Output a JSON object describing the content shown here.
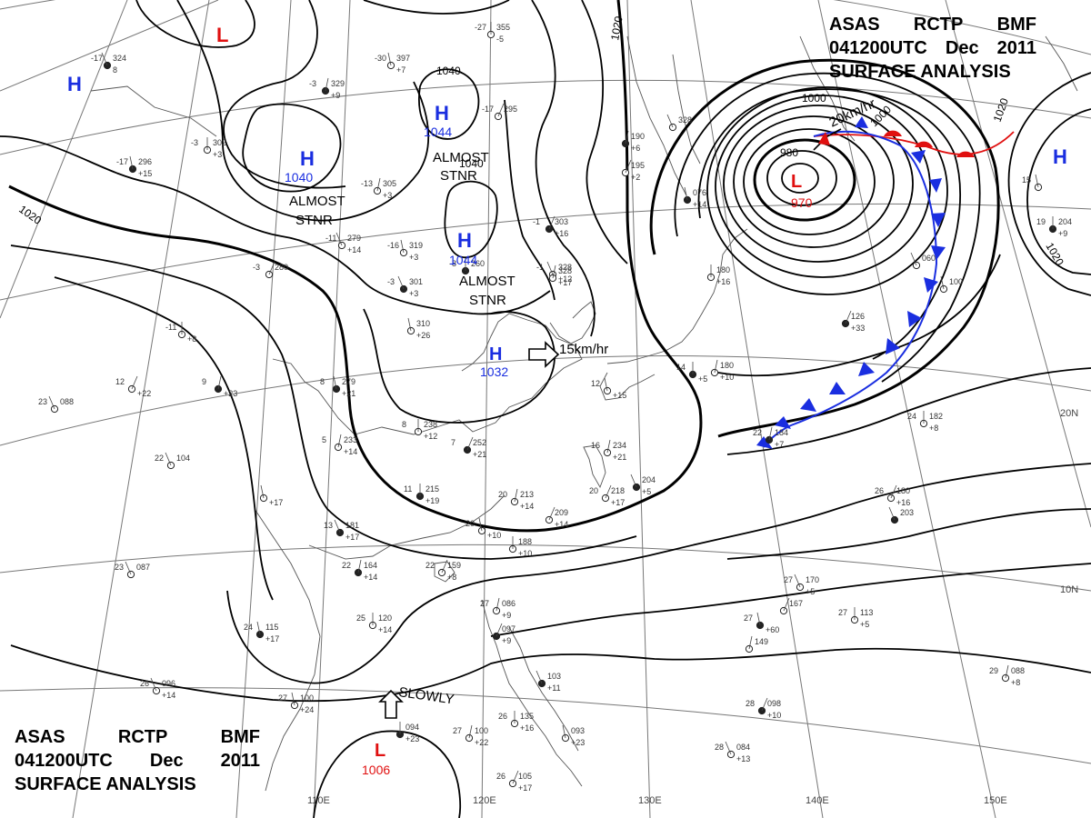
{
  "header": {
    "line1": [
      "ASAS",
      "RCTP",
      "BMF"
    ],
    "line2": [
      "041200UTC",
      "Dec",
      "2011"
    ],
    "line3": "SURFACE  ANALYSIS"
  },
  "grid_labels": {
    "lat_20": "20N",
    "lat_10": "10N",
    "lon_110": "110E",
    "lon_120": "120E",
    "lon_130": "130E",
    "lon_140": "140E",
    "lon_150": "150E"
  },
  "isobar_labels": {
    "i1020_w": "1020",
    "i1020_n": "1020",
    "i1020_e1": "1020",
    "i1020_e2": "1020",
    "i1040_top": "1040",
    "i1040_mid": "1040",
    "i1000": "1000",
    "i980": "980",
    "i1000_b": "1000"
  },
  "pressure_centers": [
    {
      "type": "L",
      "value": ""
    },
    {
      "type": "H",
      "value": ""
    },
    {
      "type": "H",
      "value": "1040"
    },
    {
      "type": "H",
      "value": "1044"
    },
    {
      "type": "H",
      "value": "1044"
    },
    {
      "type": "H",
      "value": "1032"
    },
    {
      "type": "L",
      "value": "970"
    },
    {
      "type": "H",
      "value": ""
    },
    {
      "type": "L",
      "value": "1006"
    }
  ],
  "annotations": {
    "stnr1_a": "ALMOST",
    "stnr1_b": "STNR",
    "stnr2_a": "ALMOST",
    "stnr2_b": "STNR",
    "stnr3_a": "ALMOST",
    "stnr3_b": "STNR",
    "move_h": "15km/hr",
    "move_l": "20km/hr",
    "move_slow": "SLOWLY"
  },
  "colors": {
    "isobar": "#000000",
    "high": "#1a2ee0",
    "low": "#e01010",
    "cold_front": "#1a2ee0",
    "warm_front": "#e01010",
    "grid": "#777777",
    "coast": "#555555"
  },
  "stations": [
    {
      "t": "-17",
      "p": "324",
      "d": "8"
    },
    {
      "t": "-30",
      "p": "397",
      "d": "+7"
    },
    {
      "t": "-27",
      "p": "355",
      "d": "-5"
    },
    {
      "t": "-3",
      "p": "329",
      "d": "+9"
    },
    {
      "t": "-17",
      "p": "295",
      "d": ""
    },
    {
      "t": "-1",
      "p": "328",
      "d": "+12"
    },
    {
      "t": "-17",
      "p": "296",
      "d": "+15"
    },
    {
      "t": "-3",
      "p": "302",
      "d": "+3"
    },
    {
      "t": "-13",
      "p": "305",
      "d": "+3"
    },
    {
      "t": "-1",
      "p": "303",
      "d": "+16"
    },
    {
      "t": "-11",
      "p": "279",
      "d": "+14"
    },
    {
      "t": "-16",
      "p": "319",
      "d": "+3"
    },
    {
      "t": "-8",
      "p": "260",
      "d": ""
    },
    {
      "t": "",
      "p": "328",
      "d": "+17"
    },
    {
      "t": "-3",
      "p": "280",
      "d": ""
    },
    {
      "t": "-3",
      "p": "301",
      "d": "+3"
    },
    {
      "t": "",
      "p": "310",
      "d": "+26"
    },
    {
      "t": "-11",
      "p": "",
      "d": "+8"
    },
    {
      "t": "9",
      "p": "",
      "d": "+23"
    },
    {
      "t": "12",
      "p": "",
      "d": "+22"
    },
    {
      "t": "23",
      "p": "088",
      "d": ""
    },
    {
      "t": "8",
      "p": "279",
      "d": "+21"
    },
    {
      "t": "8",
      "p": "238",
      "d": "+12"
    },
    {
      "t": "5",
      "p": "233",
      "d": "+14"
    },
    {
      "t": "7",
      "p": "252",
      "d": "+21"
    },
    {
      "t": "22",
      "p": "104",
      "d": ""
    },
    {
      "t": "",
      "p": "",
      "d": "+17"
    },
    {
      "t": "11",
      "p": "215",
      "d": "+19"
    },
    {
      "t": "20",
      "p": "213",
      "d": "+14"
    },
    {
      "t": "",
      "p": "209",
      "d": "+14"
    },
    {
      "t": "13",
      "p": "181",
      "d": "+17"
    },
    {
      "t": "20",
      "p": "",
      "d": "+10"
    },
    {
      "t": "",
      "p": "188",
      "d": "+10"
    },
    {
      "t": "22",
      "p": "164",
      "d": "+14"
    },
    {
      "t": "22",
      "p": "159",
      "d": "+8"
    },
    {
      "t": "23",
      "p": "087",
      "d": ""
    },
    {
      "t": "24",
      "p": "115",
      "d": "+17"
    },
    {
      "t": "25",
      "p": "120",
      "d": "+14"
    },
    {
      "t": "27",
      "p": "086",
      "d": "+9"
    },
    {
      "t": "",
      "p": "097",
      "d": "+9"
    },
    {
      "t": "26",
      "p": "096",
      "d": "+14"
    },
    {
      "t": "27",
      "p": "100",
      "d": "+24"
    },
    {
      "t": "",
      "p": "094",
      "d": "+23"
    },
    {
      "t": "27",
      "p": "100",
      "d": "+22"
    },
    {
      "t": "26",
      "p": "105",
      "d": "+17"
    },
    {
      "t": "",
      "p": "103",
      "d": "+11"
    },
    {
      "t": "",
      "p": "093",
      "d": "+23"
    },
    {
      "t": "26",
      "p": "135",
      "d": "+16"
    },
    {
      "t": "",
      "p": "190",
      "d": "+6"
    },
    {
      "t": "",
      "p": "195",
      "d": "+2"
    },
    {
      "t": "",
      "p": "328",
      "d": ""
    },
    {
      "t": "",
      "p": "076",
      "d": "+14"
    },
    {
      "t": "",
      "p": "180",
      "d": "+16"
    },
    {
      "t": "",
      "p": "180",
      "d": "+10"
    },
    {
      "t": "",
      "p": "126",
      "d": "+33"
    },
    {
      "t": "",
      "p": "060",
      "d": ""
    },
    {
      "t": "",
      "p": "100",
      "d": ""
    },
    {
      "t": "14",
      "p": "",
      "d": "+5"
    },
    {
      "t": "16",
      "p": "234",
      "d": "+21"
    },
    {
      "t": "20",
      "p": "218",
      "d": "+17"
    },
    {
      "t": "",
      "p": "204",
      "d": "+5"
    },
    {
      "t": "12",
      "p": "",
      "d": "+15"
    },
    {
      "t": "24",
      "p": "182",
      "d": "+8"
    },
    {
      "t": "22",
      "p": "184",
      "d": "+7"
    },
    {
      "t": "26",
      "p": "180",
      "d": "+16"
    },
    {
      "t": "27",
      "p": "170",
      "d": "+5"
    },
    {
      "t": "27",
      "p": "",
      "d": "+60"
    },
    {
      "t": "27",
      "p": "113",
      "d": "+5"
    },
    {
      "t": "29",
      "p": "088",
      "d": "+8"
    },
    {
      "t": "28",
      "p": "098",
      "d": "+10"
    },
    {
      "t": "28",
      "p": "084",
      "d": "+13"
    },
    {
      "t": "15",
      "p": "",
      "d": ""
    },
    {
      "t": "19",
      "p": "204",
      "d": "+9"
    },
    {
      "t": "",
      "p": "149",
      "d": ""
    },
    {
      "t": "",
      "p": "167",
      "d": ""
    },
    {
      "t": "",
      "p": "203",
      "d": ""
    }
  ]
}
